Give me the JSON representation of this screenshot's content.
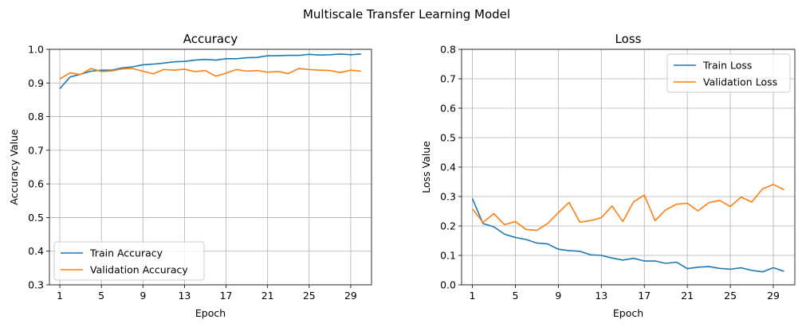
{
  "figure": {
    "suptitle": "Multiscale Transfer Learning Model"
  },
  "chart_data": [
    {
      "type": "line",
      "title": "Accuracy",
      "xlabel": "Epoch",
      "ylabel": "Accuracy Value",
      "xlim": [
        0,
        31
      ],
      "ylim": [
        0.3,
        1.0
      ],
      "xticks": [
        1,
        5,
        9,
        13,
        17,
        21,
        25,
        29
      ],
      "yticks": [
        0.3,
        0.4,
        0.5,
        0.6,
        0.7,
        0.8,
        0.9,
        1.0
      ],
      "ytick_labels": [
        "0.3",
        "0.4",
        "0.5",
        "0.6",
        "0.7",
        "0.8",
        "0.9",
        "1.0"
      ],
      "grid": true,
      "legend_position": "lower-left",
      "x": [
        1,
        2,
        3,
        4,
        5,
        6,
        7,
        8,
        9,
        10,
        11,
        12,
        13,
        14,
        15,
        16,
        17,
        18,
        19,
        20,
        21,
        22,
        23,
        24,
        25,
        26,
        27,
        28,
        29,
        30
      ],
      "series": [
        {
          "name": "Train Accuracy",
          "color": "#1f77b4",
          "values": [
            0.883,
            0.918,
            0.926,
            0.935,
            0.938,
            0.938,
            0.945,
            0.948,
            0.954,
            0.956,
            0.959,
            0.963,
            0.964,
            0.968,
            0.97,
            0.968,
            0.972,
            0.972,
            0.975,
            0.976,
            0.981,
            0.981,
            0.982,
            0.982,
            0.985,
            0.983,
            0.984,
            0.986,
            0.984,
            0.986
          ]
        },
        {
          "name": "Validation Accuracy",
          "color": "#ff7f0e",
          "values": [
            0.912,
            0.93,
            0.925,
            0.943,
            0.934,
            0.936,
            0.942,
            0.943,
            0.935,
            0.927,
            0.94,
            0.938,
            0.941,
            0.934,
            0.937,
            0.92,
            0.929,
            0.94,
            0.935,
            0.937,
            0.932,
            0.934,
            0.928,
            0.943,
            0.94,
            0.938,
            0.937,
            0.931,
            0.938,
            0.935
          ]
        }
      ]
    },
    {
      "type": "line",
      "title": "Loss",
      "xlabel": "Epoch",
      "ylabel": "Loss Value",
      "xlim": [
        0,
        31
      ],
      "ylim": [
        0.0,
        0.8
      ],
      "xticks": [
        1,
        5,
        9,
        13,
        17,
        21,
        25,
        29
      ],
      "yticks": [
        0.0,
        0.1,
        0.2,
        0.3,
        0.4,
        0.5,
        0.6,
        0.7,
        0.8
      ],
      "ytick_labels": [
        "0.0",
        "0.1",
        "0.2",
        "0.3",
        "0.4",
        "0.5",
        "0.6",
        "0.7",
        "0.8"
      ],
      "grid": true,
      "legend_position": "upper-right",
      "x": [
        1,
        2,
        3,
        4,
        5,
        6,
        7,
        8,
        9,
        10,
        11,
        12,
        13,
        14,
        15,
        16,
        17,
        18,
        19,
        20,
        21,
        22,
        23,
        24,
        25,
        26,
        27,
        28,
        29,
        30
      ],
      "series": [
        {
          "name": "Train Loss",
          "color": "#1f77b4",
          "values": [
            0.293,
            0.208,
            0.197,
            0.172,
            0.161,
            0.154,
            0.142,
            0.139,
            0.121,
            0.116,
            0.114,
            0.102,
            0.1,
            0.091,
            0.084,
            0.09,
            0.081,
            0.081,
            0.073,
            0.077,
            0.055,
            0.06,
            0.062,
            0.056,
            0.053,
            0.058,
            0.049,
            0.044,
            0.058,
            0.046
          ]
        },
        {
          "name": "Validation Loss",
          "color": "#ff7f0e",
          "values": [
            0.258,
            0.212,
            0.242,
            0.204,
            0.215,
            0.188,
            0.185,
            0.208,
            0.245,
            0.28,
            0.213,
            0.218,
            0.228,
            0.268,
            0.215,
            0.282,
            0.305,
            0.218,
            0.255,
            0.274,
            0.277,
            0.251,
            0.279,
            0.287,
            0.266,
            0.298,
            0.281,
            0.326,
            0.341,
            0.323
          ]
        }
      ]
    }
  ]
}
